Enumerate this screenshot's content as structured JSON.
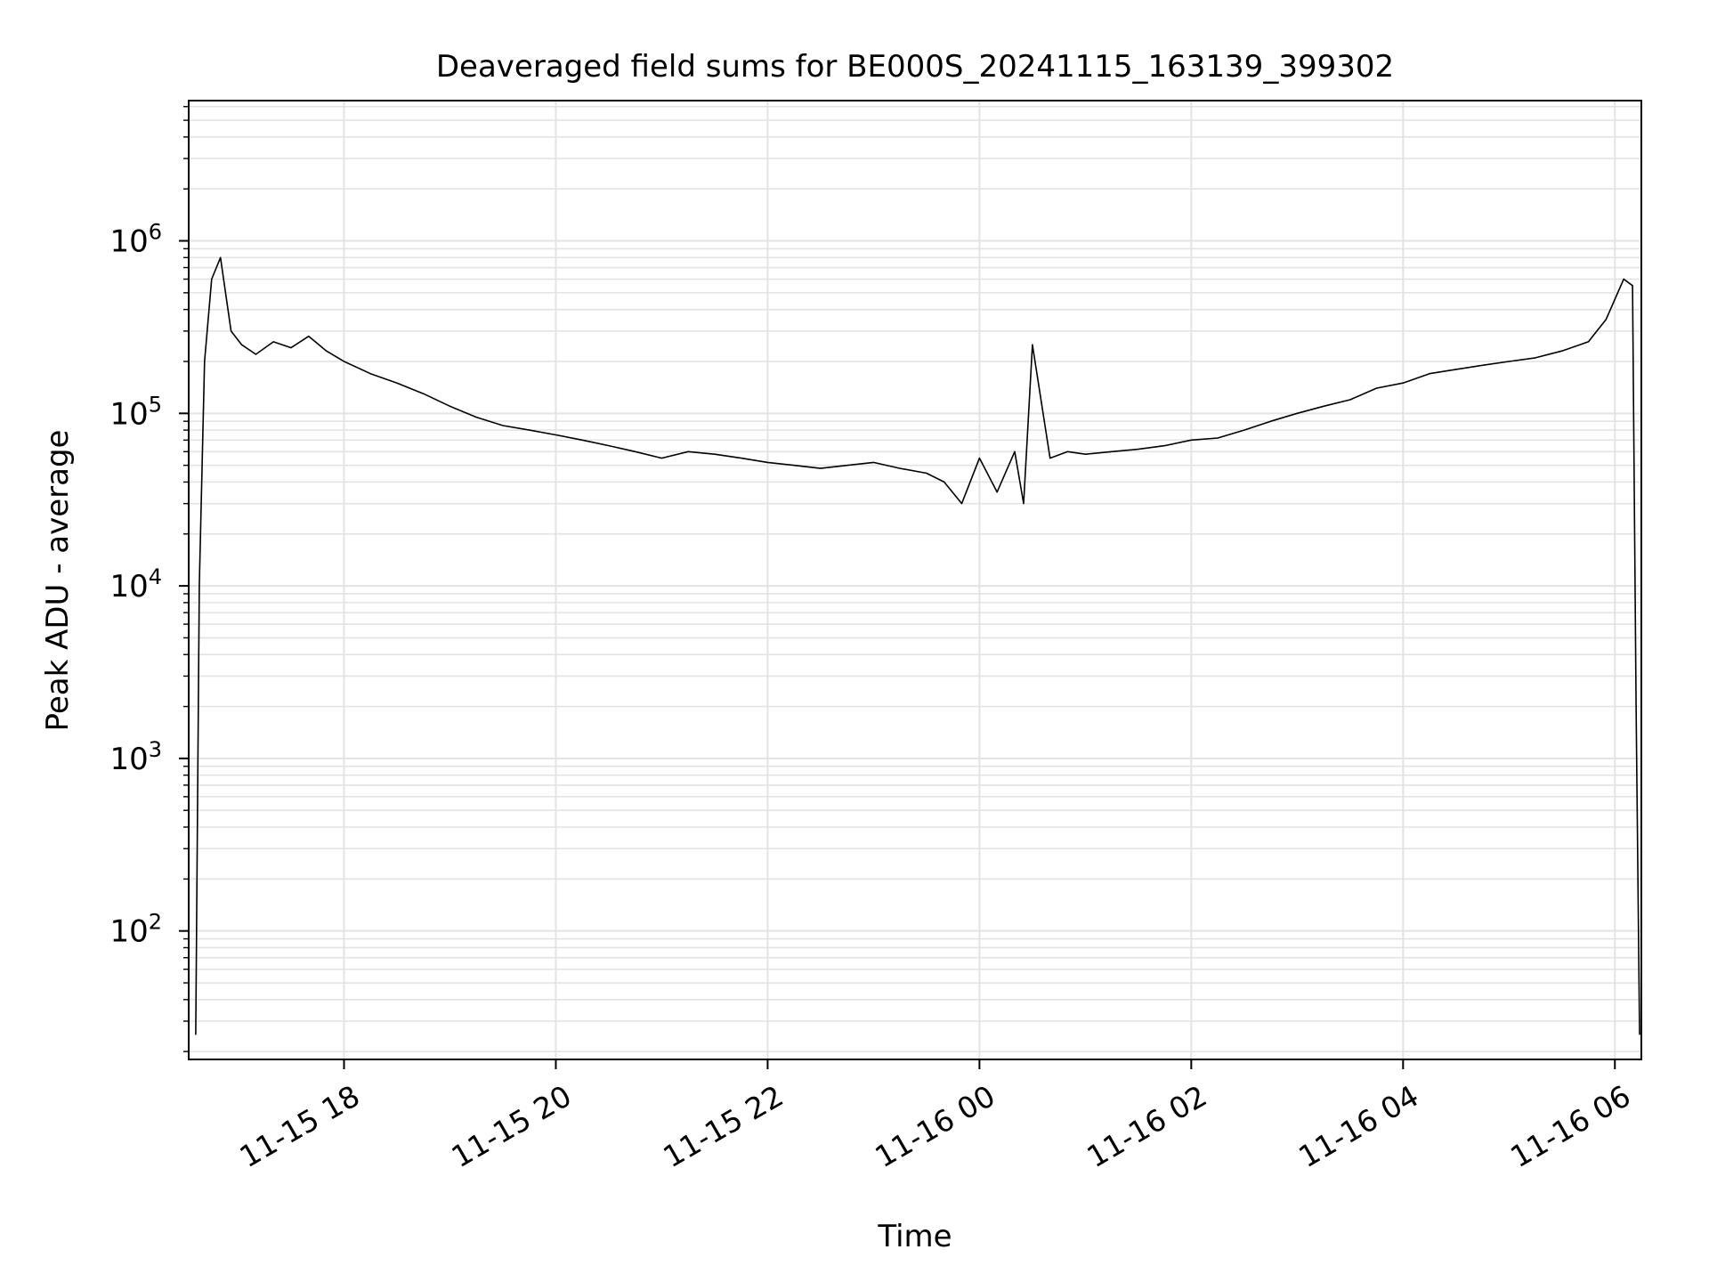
{
  "chart_data": {
    "type": "line",
    "title": "Deaveraged field sums for BE000S_20241115_163139_399302",
    "xlabel": "Time",
    "ylabel": "Peak ADU - average",
    "yscale": "log",
    "xlim": [
      "2024-11-15T16:32",
      "2024-11-16T06:15"
    ],
    "ylim": [
      18,
      6500000
    ],
    "grid": true,
    "x_ticks": [
      {
        "value": "2024-11-15T18:00",
        "label": "11-15 18"
      },
      {
        "value": "2024-11-15T20:00",
        "label": "11-15 20"
      },
      {
        "value": "2024-11-15T22:00",
        "label": "11-15 22"
      },
      {
        "value": "2024-11-16T00:00",
        "label": "11-16 00"
      },
      {
        "value": "2024-11-16T02:00",
        "label": "11-16 02"
      },
      {
        "value": "2024-11-16T04:00",
        "label": "11-16 04"
      },
      {
        "value": "2024-11-16T06:00",
        "label": "11-16 06"
      }
    ],
    "y_ticks": [
      {
        "value": 100,
        "base": "10",
        "exp": "2"
      },
      {
        "value": 1000,
        "base": "10",
        "exp": "3"
      },
      {
        "value": 10000,
        "base": "10",
        "exp": "4"
      },
      {
        "value": 100000,
        "base": "10",
        "exp": "5"
      },
      {
        "value": 1000000,
        "base": "10",
        "exp": "6"
      }
    ],
    "series": [
      {
        "color": "#000000",
        "x": [
          "2024-11-15T16:36",
          "2024-11-15T16:38",
          "2024-11-15T16:41",
          "2024-11-15T16:45",
          "2024-11-15T16:50",
          "2024-11-15T16:56",
          "2024-11-15T17:02",
          "2024-11-15T17:10",
          "2024-11-15T17:20",
          "2024-11-15T17:30",
          "2024-11-15T17:40",
          "2024-11-15T17:50",
          "2024-11-15T18:00",
          "2024-11-15T18:15",
          "2024-11-15T18:30",
          "2024-11-15T18:45",
          "2024-11-15T19:00",
          "2024-11-15T19:15",
          "2024-11-15T19:30",
          "2024-11-15T19:45",
          "2024-11-15T20:00",
          "2024-11-15T20:15",
          "2024-11-15T20:30",
          "2024-11-15T20:45",
          "2024-11-15T21:00",
          "2024-11-15T21:15",
          "2024-11-15T21:30",
          "2024-11-15T21:45",
          "2024-11-15T22:00",
          "2024-11-15T22:15",
          "2024-11-15T22:30",
          "2024-11-15T22:45",
          "2024-11-15T23:00",
          "2024-11-15T23:15",
          "2024-11-15T23:30",
          "2024-11-15T23:40",
          "2024-11-15T23:50",
          "2024-11-16T00:00",
          "2024-11-16T00:10",
          "2024-11-16T00:20",
          "2024-11-16T00:25",
          "2024-11-16T00:30",
          "2024-11-16T00:40",
          "2024-11-16T00:50",
          "2024-11-16T01:00",
          "2024-11-16T01:15",
          "2024-11-16T01:30",
          "2024-11-16T01:45",
          "2024-11-16T02:00",
          "2024-11-16T02:15",
          "2024-11-16T02:30",
          "2024-11-16T02:45",
          "2024-11-16T03:00",
          "2024-11-16T03:15",
          "2024-11-16T03:30",
          "2024-11-16T03:45",
          "2024-11-16T04:00",
          "2024-11-16T04:15",
          "2024-11-16T04:30",
          "2024-11-16T04:45",
          "2024-11-16T05:00",
          "2024-11-16T05:15",
          "2024-11-16T05:30",
          "2024-11-16T05:45",
          "2024-11-16T05:55",
          "2024-11-16T06:05",
          "2024-11-16T06:10",
          "2024-11-16T06:12",
          "2024-11-16T06:14"
        ],
        "y": [
          25,
          10000,
          200000,
          600000,
          800000,
          300000,
          250000,
          220000,
          260000,
          240000,
          280000,
          230000,
          200000,
          170000,
          150000,
          130000,
          110000,
          95000,
          85000,
          80000,
          75000,
          70000,
          65000,
          60000,
          55000,
          60000,
          58000,
          55000,
          52000,
          50000,
          48000,
          50000,
          52000,
          48000,
          45000,
          40000,
          30000,
          55000,
          35000,
          60000,
          30000,
          250000,
          55000,
          60000,
          58000,
          60000,
          62000,
          65000,
          70000,
          72000,
          80000,
          90000,
          100000,
          110000,
          120000,
          140000,
          150000,
          170000,
          180000,
          190000,
          200000,
          210000,
          230000,
          260000,
          350000,
          600000,
          550000,
          2000,
          25
        ]
      }
    ]
  }
}
